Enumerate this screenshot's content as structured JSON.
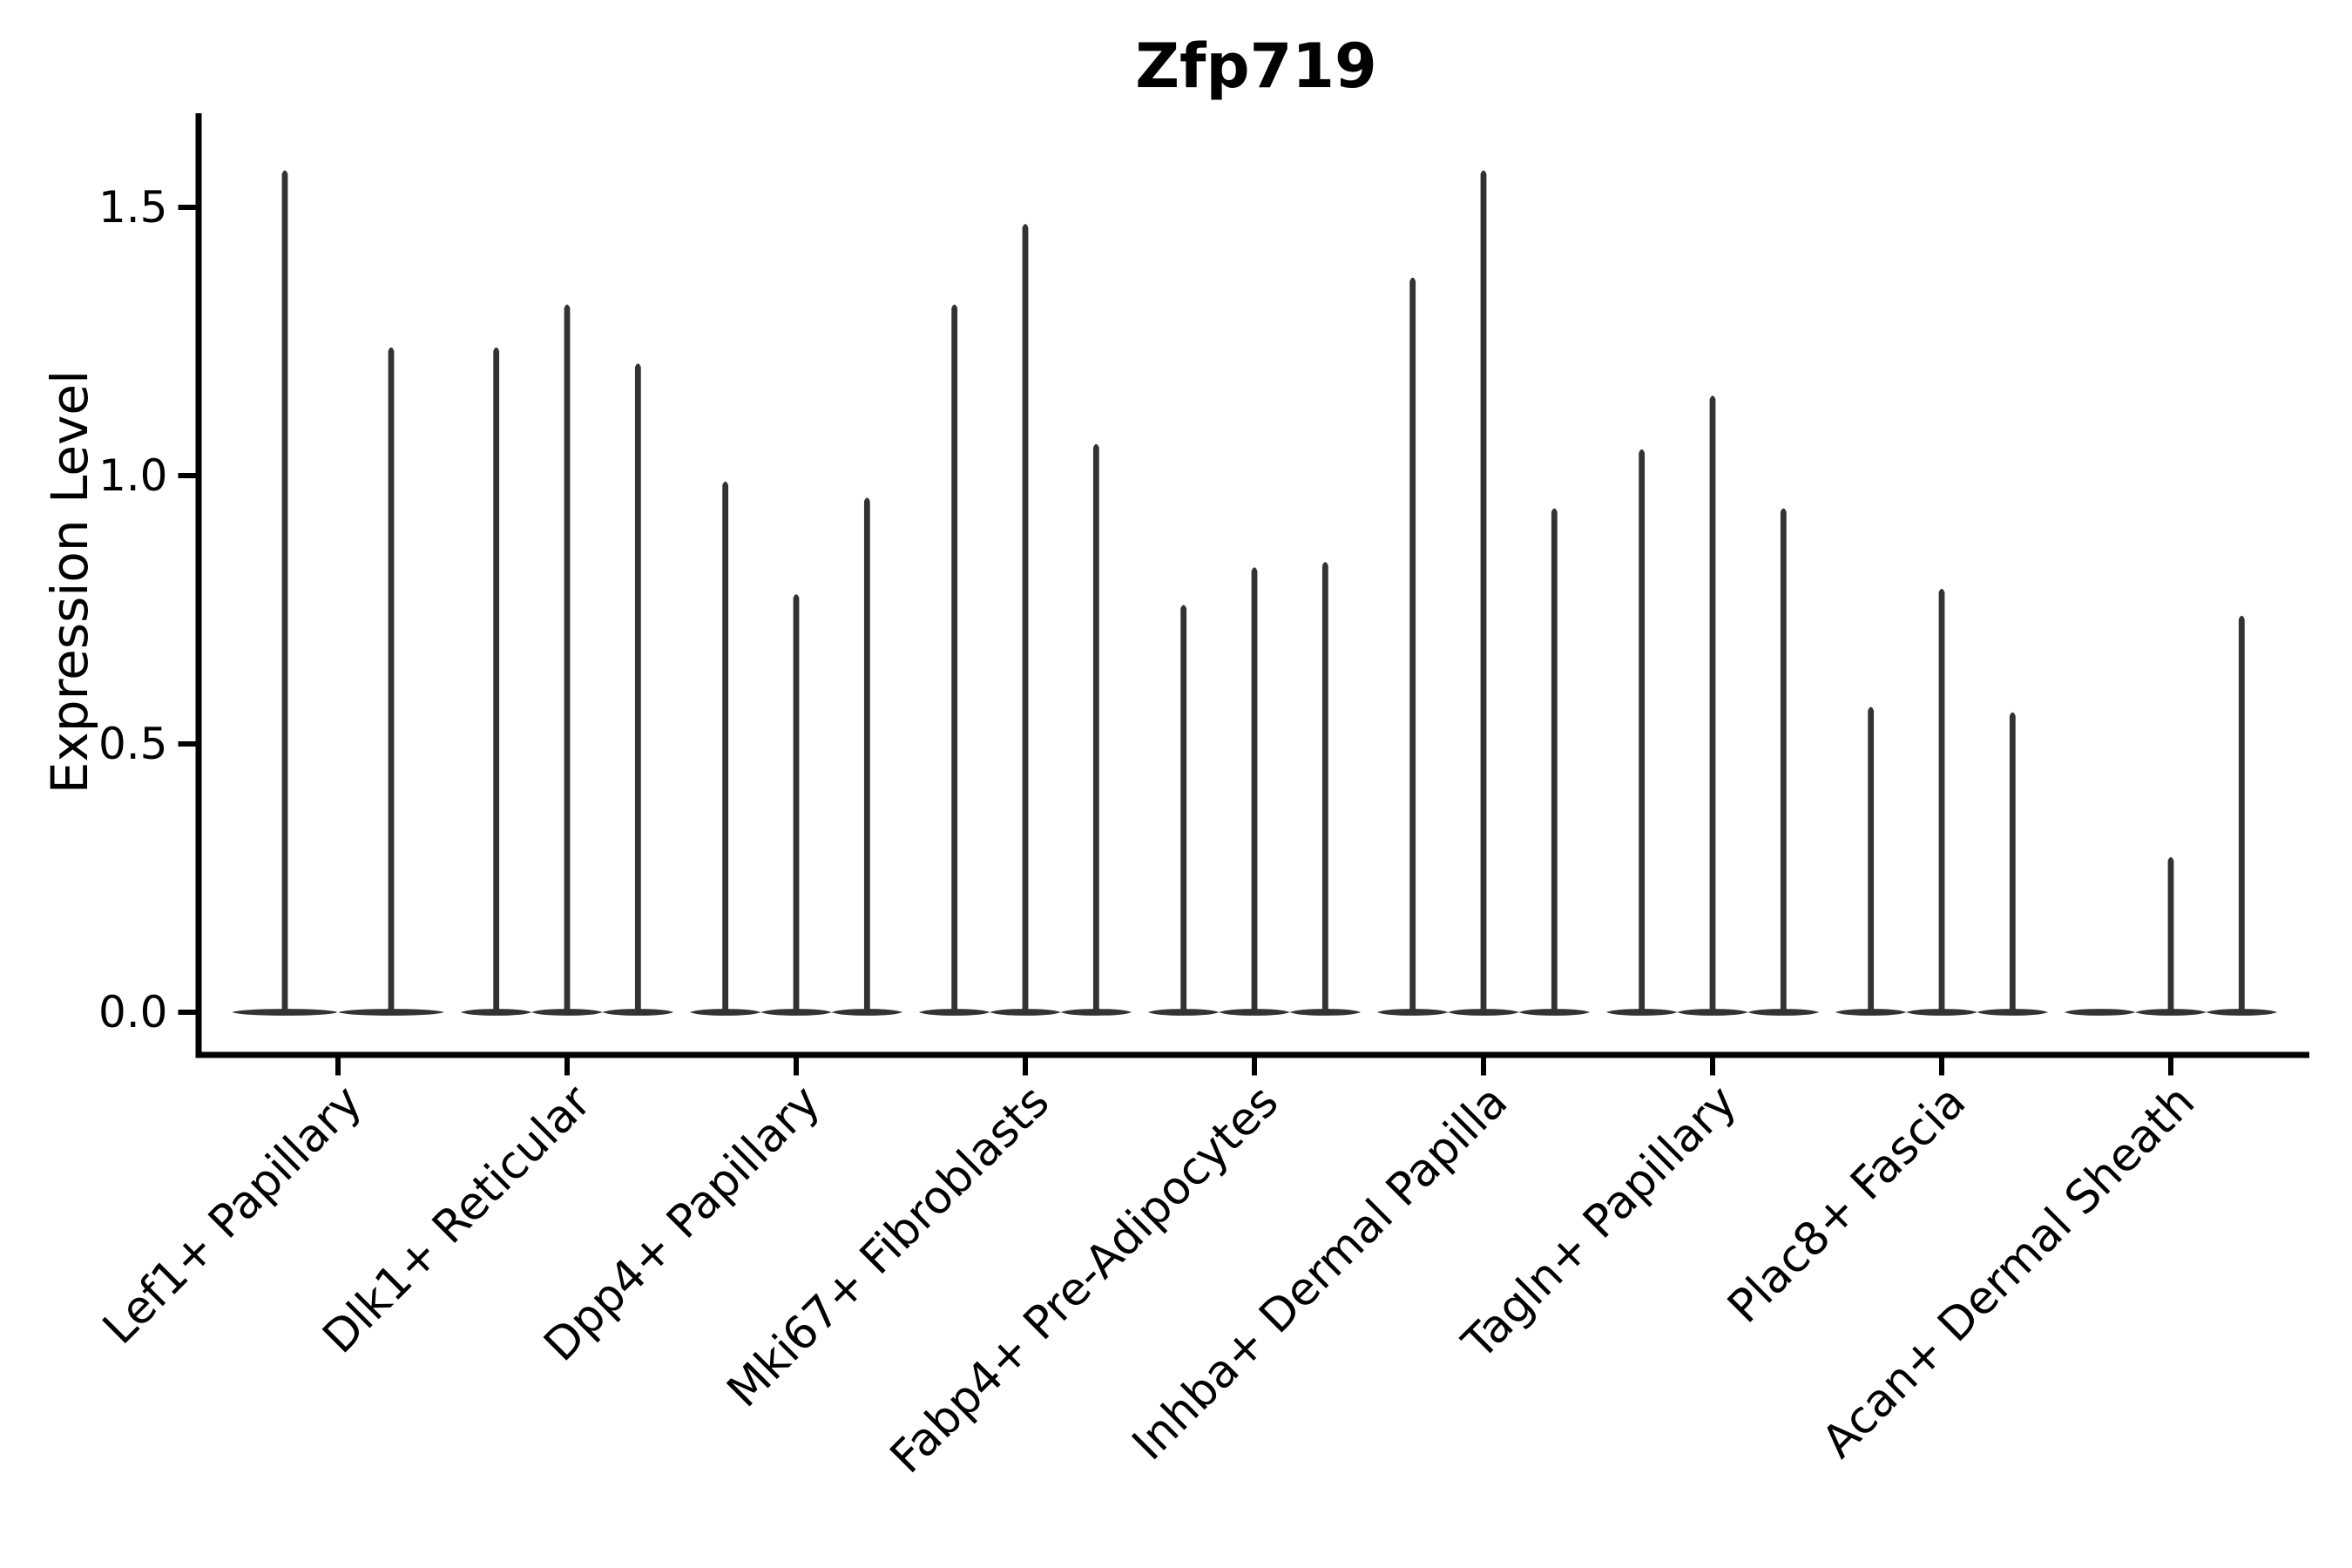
{
  "chart_data": {
    "type": "violin",
    "title": "Zfp719",
    "ylabel": "Expression Level",
    "xlabel": "",
    "ytick_labels": [
      "0.0",
      "0.5",
      "1.0",
      "1.5"
    ],
    "ytick_values": [
      0.0,
      0.5,
      1.0,
      1.5
    ],
    "ylim": [
      -0.08,
      1.68
    ],
    "grid": false,
    "legend": false,
    "x_label_rotation_deg": 45,
    "categories": [
      "Lef1+ Papillary",
      "Dlk1+ Reticular",
      "Dpp4+ Papillary",
      "Mki67+ Fibroblasts",
      "Fabp4+ Pre-Adipocytes",
      "Inhba+ Dermal Papilla",
      "Tagln+ Papillary",
      "Plac8+ Fascia",
      "Acan+ Dermal Sheath"
    ],
    "violins_max_expression": [
      [
        1.57,
        1.24
      ],
      [
        1.24,
        1.32,
        1.21
      ],
      [
        0.99,
        0.78,
        0.96
      ],
      [
        1.32,
        1.47,
        1.06
      ],
      [
        0.76,
        0.83,
        0.84
      ],
      [
        1.37,
        1.57,
        0.94
      ],
      [
        1.05,
        1.15,
        0.94
      ],
      [
        0.57,
        0.79,
        0.56
      ],
      [
        0.0,
        0.29,
        0.74
      ]
    ],
    "baseline_value": 0.0,
    "colors": {
      "violin": "#333333",
      "axis": "#000000",
      "text": "#000000",
      "background": "#ffffff"
    }
  }
}
